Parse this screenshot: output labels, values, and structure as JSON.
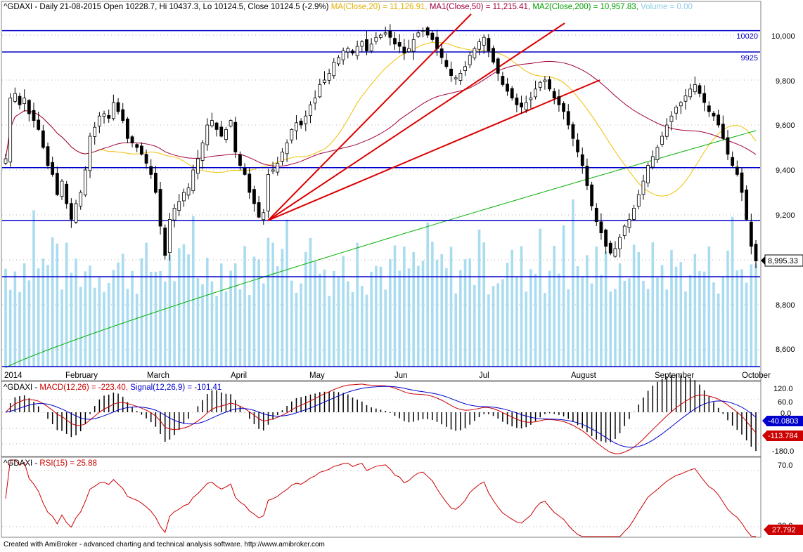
{
  "footer": "Created with AmiBroker - advanced charting and technical analysis software. http://www.amibroker.com",
  "colors": {
    "candle": "#000000",
    "volume": "#aadcf0",
    "ma20": "#f0c000",
    "ma50": "#a00040",
    "ma200": "#00b000",
    "hline": "#0000cc",
    "trend": "#dd0000",
    "macd": "#cc0000",
    "signal": "#0000cc",
    "histogram": "#000000",
    "rsi": "#cc0000",
    "grid": "#b0b0b0"
  },
  "price_panel": {
    "header": {
      "symbol_info": "^GDAXI - Daily 21-08-2015 Open 10228.7, Hi 10437.3, Lo 10124.5, Close 10124.5 (-2.9%)",
      "ma20": "MA(Close,20) = 11,126.91,",
      "ma50": "MA1(Close,50) = 11,215.41,",
      "ma200": "MA2(Close,200) = 10,957.83,",
      "volume": "Volume = 0.00"
    },
    "last_price_label": "8,995.33",
    "hline_labels": {
      "h10020": "10020",
      "h9925": "9925"
    },
    "y_ticks": [
      "10,000",
      "9,800",
      "9,600",
      "9,400",
      "9,200",
      "8,800",
      "8,600"
    ],
    "x_labels": [
      "2014",
      "February",
      "March",
      "April",
      "May",
      "Jun",
      "Jul",
      "August",
      "September",
      "October"
    ]
  },
  "macd_panel": {
    "header": {
      "label": "^GDAXI - ",
      "macd": "MACD(12,26) = -223.40,",
      "signal": "Signal(12,26,9) = -101.41"
    },
    "y_ticks": [
      "120.0",
      "60.0",
      "0.0",
      "-180.0"
    ],
    "signal_value_label": "-40.0803",
    "macd_value_label": "-113.784"
  },
  "rsi_panel": {
    "header": {
      "label": "^GDAXI - ",
      "rsi": "RSI(15) = 25.88"
    },
    "y_ticks": [
      "70.0",
      "30.0"
    ],
    "rsi_value_label": "27.792"
  },
  "chart_data": [
    {
      "type": "candlestick",
      "title": "^GDAXI - Daily",
      "ylim": [
        8500,
        10070
      ],
      "x_labels": [
        "2014",
        "February",
        "March",
        "April",
        "May",
        "Jun",
        "Jul",
        "August",
        "September",
        "October"
      ],
      "y_ticks": [
        8600,
        8800,
        9000,
        9200,
        9400,
        9600,
        9800,
        10000
      ],
      "horizontal_levels": [
        10020,
        9925,
        9410,
        9175,
        8925,
        8525
      ],
      "close": [
        9450,
        9720,
        9740,
        9690,
        9720,
        9650,
        9620,
        9580,
        9500,
        9420,
        9380,
        9290,
        9350,
        9250,
        9180,
        9250,
        9300,
        9400,
        9550,
        9590,
        9640,
        9650,
        9630,
        9700,
        9660,
        9620,
        9540,
        9520,
        9500,
        9470,
        9430,
        9380,
        9300,
        9150,
        9020,
        9180,
        9230,
        9260,
        9300,
        9320,
        9400,
        9450,
        9520,
        9600,
        9620,
        9580,
        9550,
        9580,
        9620,
        9480,
        9420,
        9380,
        9300,
        9250,
        9190,
        9210,
        9380,
        9400,
        9430,
        9480,
        9520,
        9580,
        9610,
        9600,
        9640,
        9690,
        9720,
        9780,
        9800,
        9830,
        9880,
        9900,
        9930,
        9940,
        9920,
        9950,
        9970,
        9930,
        9960,
        9990,
        10000,
        10010,
        9990,
        9960,
        9950,
        9920,
        9940,
        9980,
        10010,
        10020,
        10000,
        9980,
        9940,
        9900,
        9860,
        9820,
        9810,
        9830,
        9860,
        9910,
        9940,
        9970,
        9990,
        9930,
        9880,
        9830,
        9780,
        9750,
        9720,
        9690,
        9680,
        9700,
        9720,
        9760,
        9790,
        9800,
        9760,
        9720,
        9690,
        9660,
        9600,
        9540,
        9480,
        9420,
        9330,
        9240,
        9170,
        9120,
        9060,
        9030,
        9050,
        9100,
        9150,
        9180,
        9230,
        9290,
        9350,
        9420,
        9460,
        9500,
        9550,
        9600,
        9640,
        9680,
        9700,
        9730,
        9760,
        9780,
        9740,
        9700,
        9660,
        9640,
        9600,
        9540,
        9470,
        9420,
        9380,
        9300,
        9180,
        9060,
        8995
      ]
    },
    {
      "type": "line",
      "title": "MACD(12,26)",
      "series": [
        {
          "name": "MACD(12,26)"
        },
        {
          "name": "Signal(12,26,9)"
        }
      ],
      "ylim": [
        -210,
        130
      ]
    },
    {
      "type": "line",
      "title": "RSI(15)",
      "ylim": [
        15,
        85
      ]
    }
  ]
}
